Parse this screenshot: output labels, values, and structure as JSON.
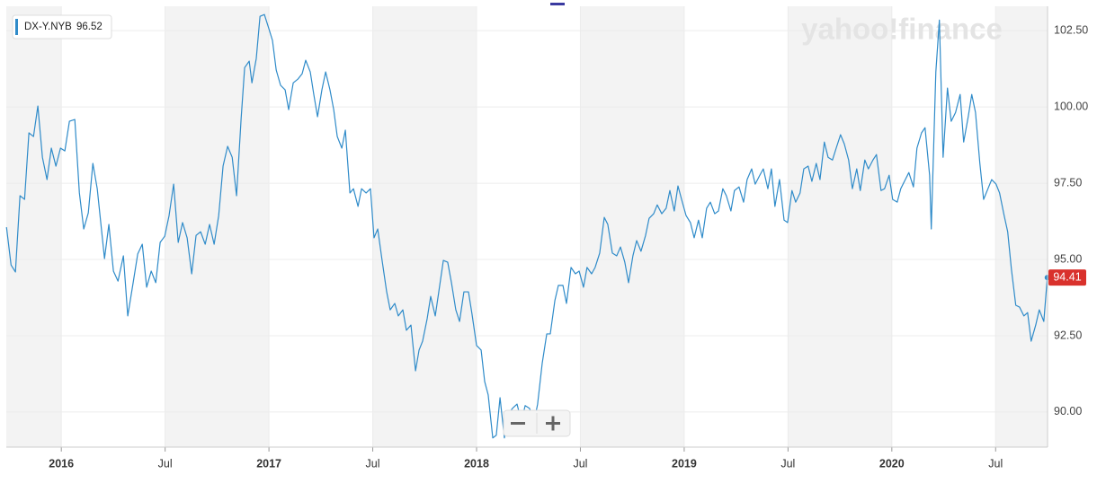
{
  "chart_data": {
    "type": "line",
    "watermark": "yahoo!finance",
    "legend_value": 96.52,
    "x": [
      2015.736,
      2015.758,
      2015.779,
      2015.801,
      2015.823,
      2015.844,
      2015.866,
      2015.887,
      2015.909,
      2015.931,
      2015.952,
      2015.974,
      2015.996,
      2016.017,
      2016.039,
      2016.065,
      2016.087,
      2016.108,
      2016.13,
      2016.152,
      2016.173,
      2016.208,
      2016.229,
      2016.251,
      2016.273,
      2016.299,
      2016.32,
      2016.346,
      2016.368,
      2016.39,
      2016.411,
      2016.433,
      2016.455,
      2016.476,
      2016.498,
      2016.519,
      2016.541,
      2016.563,
      2016.584,
      2016.606,
      2016.628,
      2016.649,
      2016.671,
      2016.693,
      2016.714,
      2016.736,
      2016.758,
      2016.779,
      2016.801,
      2016.823,
      2016.844,
      2016.866,
      2016.883,
      2016.905,
      2016.918,
      2016.939,
      2016.957,
      2016.978,
      2017.0,
      2017.017,
      2017.035,
      2017.056,
      2017.078,
      2017.095,
      2017.117,
      2017.139,
      2017.16,
      2017.177,
      2017.199,
      2017.216,
      2017.234,
      2017.255,
      2017.273,
      2017.294,
      2017.312,
      2017.329,
      2017.351,
      2017.368,
      2017.39,
      2017.407,
      2017.429,
      2017.446,
      2017.468,
      2017.489,
      2017.506,
      2017.524,
      2017.545,
      2017.567,
      2017.584,
      2017.606,
      2017.623,
      2017.645,
      2017.662,
      2017.684,
      2017.706,
      2017.723,
      2017.74,
      2017.762,
      2017.779,
      2017.801,
      2017.818,
      2017.84,
      2017.861,
      2017.879,
      2017.9,
      2017.918,
      2017.939,
      2017.961,
      2017.978,
      2018.0,
      2018.022,
      2018.039,
      2018.056,
      2018.078,
      2018.095,
      2018.113,
      2018.134,
      2018.156,
      2018.173,
      2018.195,
      2018.216,
      2018.234,
      2018.255,
      2018.277,
      2018.294,
      2018.316,
      2018.338,
      2018.355,
      2018.377,
      2018.394,
      2018.416,
      2018.433,
      2018.455,
      2018.476,
      2018.494,
      2018.515,
      2018.532,
      2018.554,
      2018.571,
      2018.593,
      2018.615,
      2018.632,
      2018.654,
      2018.675,
      2018.693,
      2018.714,
      2018.732,
      2018.753,
      2018.771,
      2018.792,
      2018.814,
      2018.831,
      2018.853,
      2018.87,
      2018.892,
      2018.913,
      2018.931,
      2018.952,
      2018.97,
      2018.991,
      2019.009,
      2019.03,
      2019.048,
      2019.069,
      2019.087,
      2019.108,
      2019.126,
      2019.147,
      2019.165,
      2019.186,
      2019.203,
      2019.225,
      2019.242,
      2019.264,
      2019.286,
      2019.303,
      2019.325,
      2019.342,
      2019.364,
      2019.381,
      2019.403,
      2019.42,
      2019.437,
      2019.459,
      2019.481,
      2019.498,
      2019.519,
      2019.537,
      2019.558,
      2019.576,
      2019.597,
      2019.615,
      2019.636,
      2019.654,
      2019.675,
      2019.693,
      2019.714,
      2019.732,
      2019.753,
      2019.771,
      2019.792,
      2019.81,
      2019.831,
      2019.848,
      2019.87,
      2019.887,
      2019.909,
      2019.926,
      2019.948,
      2019.965,
      2019.987,
      2020.004,
      2020.026,
      2020.043,
      2020.065,
      2020.082,
      2020.104,
      2020.121,
      2020.143,
      2020.16,
      2020.182,
      2020.19,
      2020.212,
      2020.229,
      2020.247,
      2020.268,
      2020.286,
      2020.307,
      2020.329,
      2020.346,
      2020.368,
      2020.385,
      2020.403,
      2020.424,
      2020.442,
      2020.463,
      2020.481,
      2020.502,
      2020.519,
      2020.541,
      2020.558,
      2020.576,
      2020.597,
      2020.615,
      2020.636,
      2020.654,
      2020.671,
      2020.693,
      2020.71,
      2020.732,
      2020.749
    ],
    "series": [
      {
        "name": "DX-Y.NYB",
        "color": "#2f8bc9",
        "values": [
          96.06,
          94.82,
          94.59,
          97.09,
          96.97,
          99.15,
          99.03,
          100.03,
          98.35,
          97.62,
          98.65,
          98.06,
          98.65,
          98.56,
          99.53,
          99.59,
          97.18,
          96.0,
          96.53,
          98.15,
          97.32,
          95.03,
          96.15,
          94.62,
          94.29,
          95.12,
          93.15,
          94.24,
          95.18,
          95.5,
          94.09,
          94.62,
          94.24,
          95.56,
          95.76,
          96.44,
          97.47,
          95.56,
          96.21,
          95.71,
          94.53,
          95.79,
          95.91,
          95.5,
          96.15,
          95.5,
          96.44,
          98.06,
          98.71,
          98.35,
          97.09,
          99.62,
          101.29,
          101.5,
          100.79,
          101.59,
          102.97,
          103.03,
          102.56,
          102.18,
          101.21,
          100.71,
          100.56,
          99.91,
          100.79,
          100.91,
          101.09,
          101.53,
          101.15,
          100.41,
          99.68,
          100.56,
          101.15,
          100.56,
          99.91,
          99.03,
          98.65,
          99.24,
          97.18,
          97.32,
          96.74,
          97.32,
          97.18,
          97.32,
          95.71,
          96.0,
          94.97,
          93.94,
          93.35,
          93.56,
          93.15,
          93.35,
          92.68,
          92.85,
          91.35,
          92.03,
          92.32,
          93.06,
          93.79,
          93.15,
          93.94,
          94.97,
          94.91,
          94.24,
          93.35,
          92.97,
          93.94,
          93.94,
          93.21,
          92.18,
          92.03,
          91.0,
          90.56,
          89.15,
          89.24,
          90.47,
          89.15,
          89.97,
          90.12,
          90.26,
          89.68,
          90.21,
          90.12,
          89.68,
          90.26,
          91.59,
          92.56,
          92.56,
          93.65,
          94.15,
          94.15,
          93.56,
          94.74,
          94.53,
          94.62,
          94.09,
          94.74,
          94.53,
          94.74,
          95.21,
          96.38,
          96.15,
          95.21,
          95.12,
          95.41,
          94.91,
          94.24,
          95.12,
          95.62,
          95.27,
          95.79,
          96.35,
          96.5,
          96.79,
          96.5,
          96.68,
          97.26,
          96.59,
          97.41,
          96.88,
          96.44,
          96.21,
          95.71,
          96.29,
          95.71,
          96.68,
          96.88,
          96.5,
          96.59,
          97.32,
          97.09,
          96.59,
          97.26,
          97.38,
          96.88,
          97.62,
          97.97,
          97.47,
          97.76,
          97.97,
          97.32,
          97.97,
          96.74,
          97.62,
          96.29,
          96.21,
          97.26,
          96.88,
          97.18,
          97.97,
          98.06,
          97.56,
          98.15,
          97.62,
          98.85,
          98.35,
          98.26,
          98.65,
          99.09,
          98.79,
          98.26,
          97.32,
          97.97,
          97.26,
          98.26,
          97.97,
          98.26,
          98.44,
          97.26,
          97.32,
          97.76,
          96.97,
          96.88,
          97.32,
          97.62,
          97.85,
          97.38,
          98.65,
          99.15,
          99.32,
          97.76,
          96.0,
          101.15,
          102.85,
          98.35,
          100.62,
          99.53,
          99.82,
          100.41,
          98.85,
          99.68,
          100.41,
          99.82,
          98.15,
          96.97,
          97.32,
          97.62,
          97.47,
          97.18,
          96.44,
          95.91,
          94.68,
          93.5,
          93.44,
          93.15,
          93.26,
          92.32,
          92.85,
          93.35,
          92.97,
          94.41
        ]
      }
    ],
    "xlim": [
      2015.735,
      2020.75
    ],
    "xticks": [
      {
        "value": 2016,
        "label": "2016"
      },
      {
        "value": 2016.5,
        "label": "Jul"
      },
      {
        "value": 2017,
        "label": "2017"
      },
      {
        "value": 2017.5,
        "label": "Jul"
      },
      {
        "value": 2018,
        "label": "2018"
      },
      {
        "value": 2018.5,
        "label": "Jul"
      },
      {
        "value": 2019,
        "label": "2019"
      },
      {
        "value": 2019.5,
        "label": "Jul"
      },
      {
        "value": 2020,
        "label": "2020"
      },
      {
        "value": 2020.5,
        "label": "Jul"
      }
    ],
    "ylim": [
      88.85,
      103.3
    ],
    "yticks": [
      {
        "value": 90,
        "label": "90.00"
      },
      {
        "value": 92.5,
        "label": "92.50"
      },
      {
        "value": 95,
        "label": "95.00"
      },
      {
        "value": 97.5,
        "label": "97.50"
      },
      {
        "value": 100,
        "label": "100.00"
      },
      {
        "value": 102.5,
        "label": "102.50"
      }
    ],
    "grid": true
  }
}
